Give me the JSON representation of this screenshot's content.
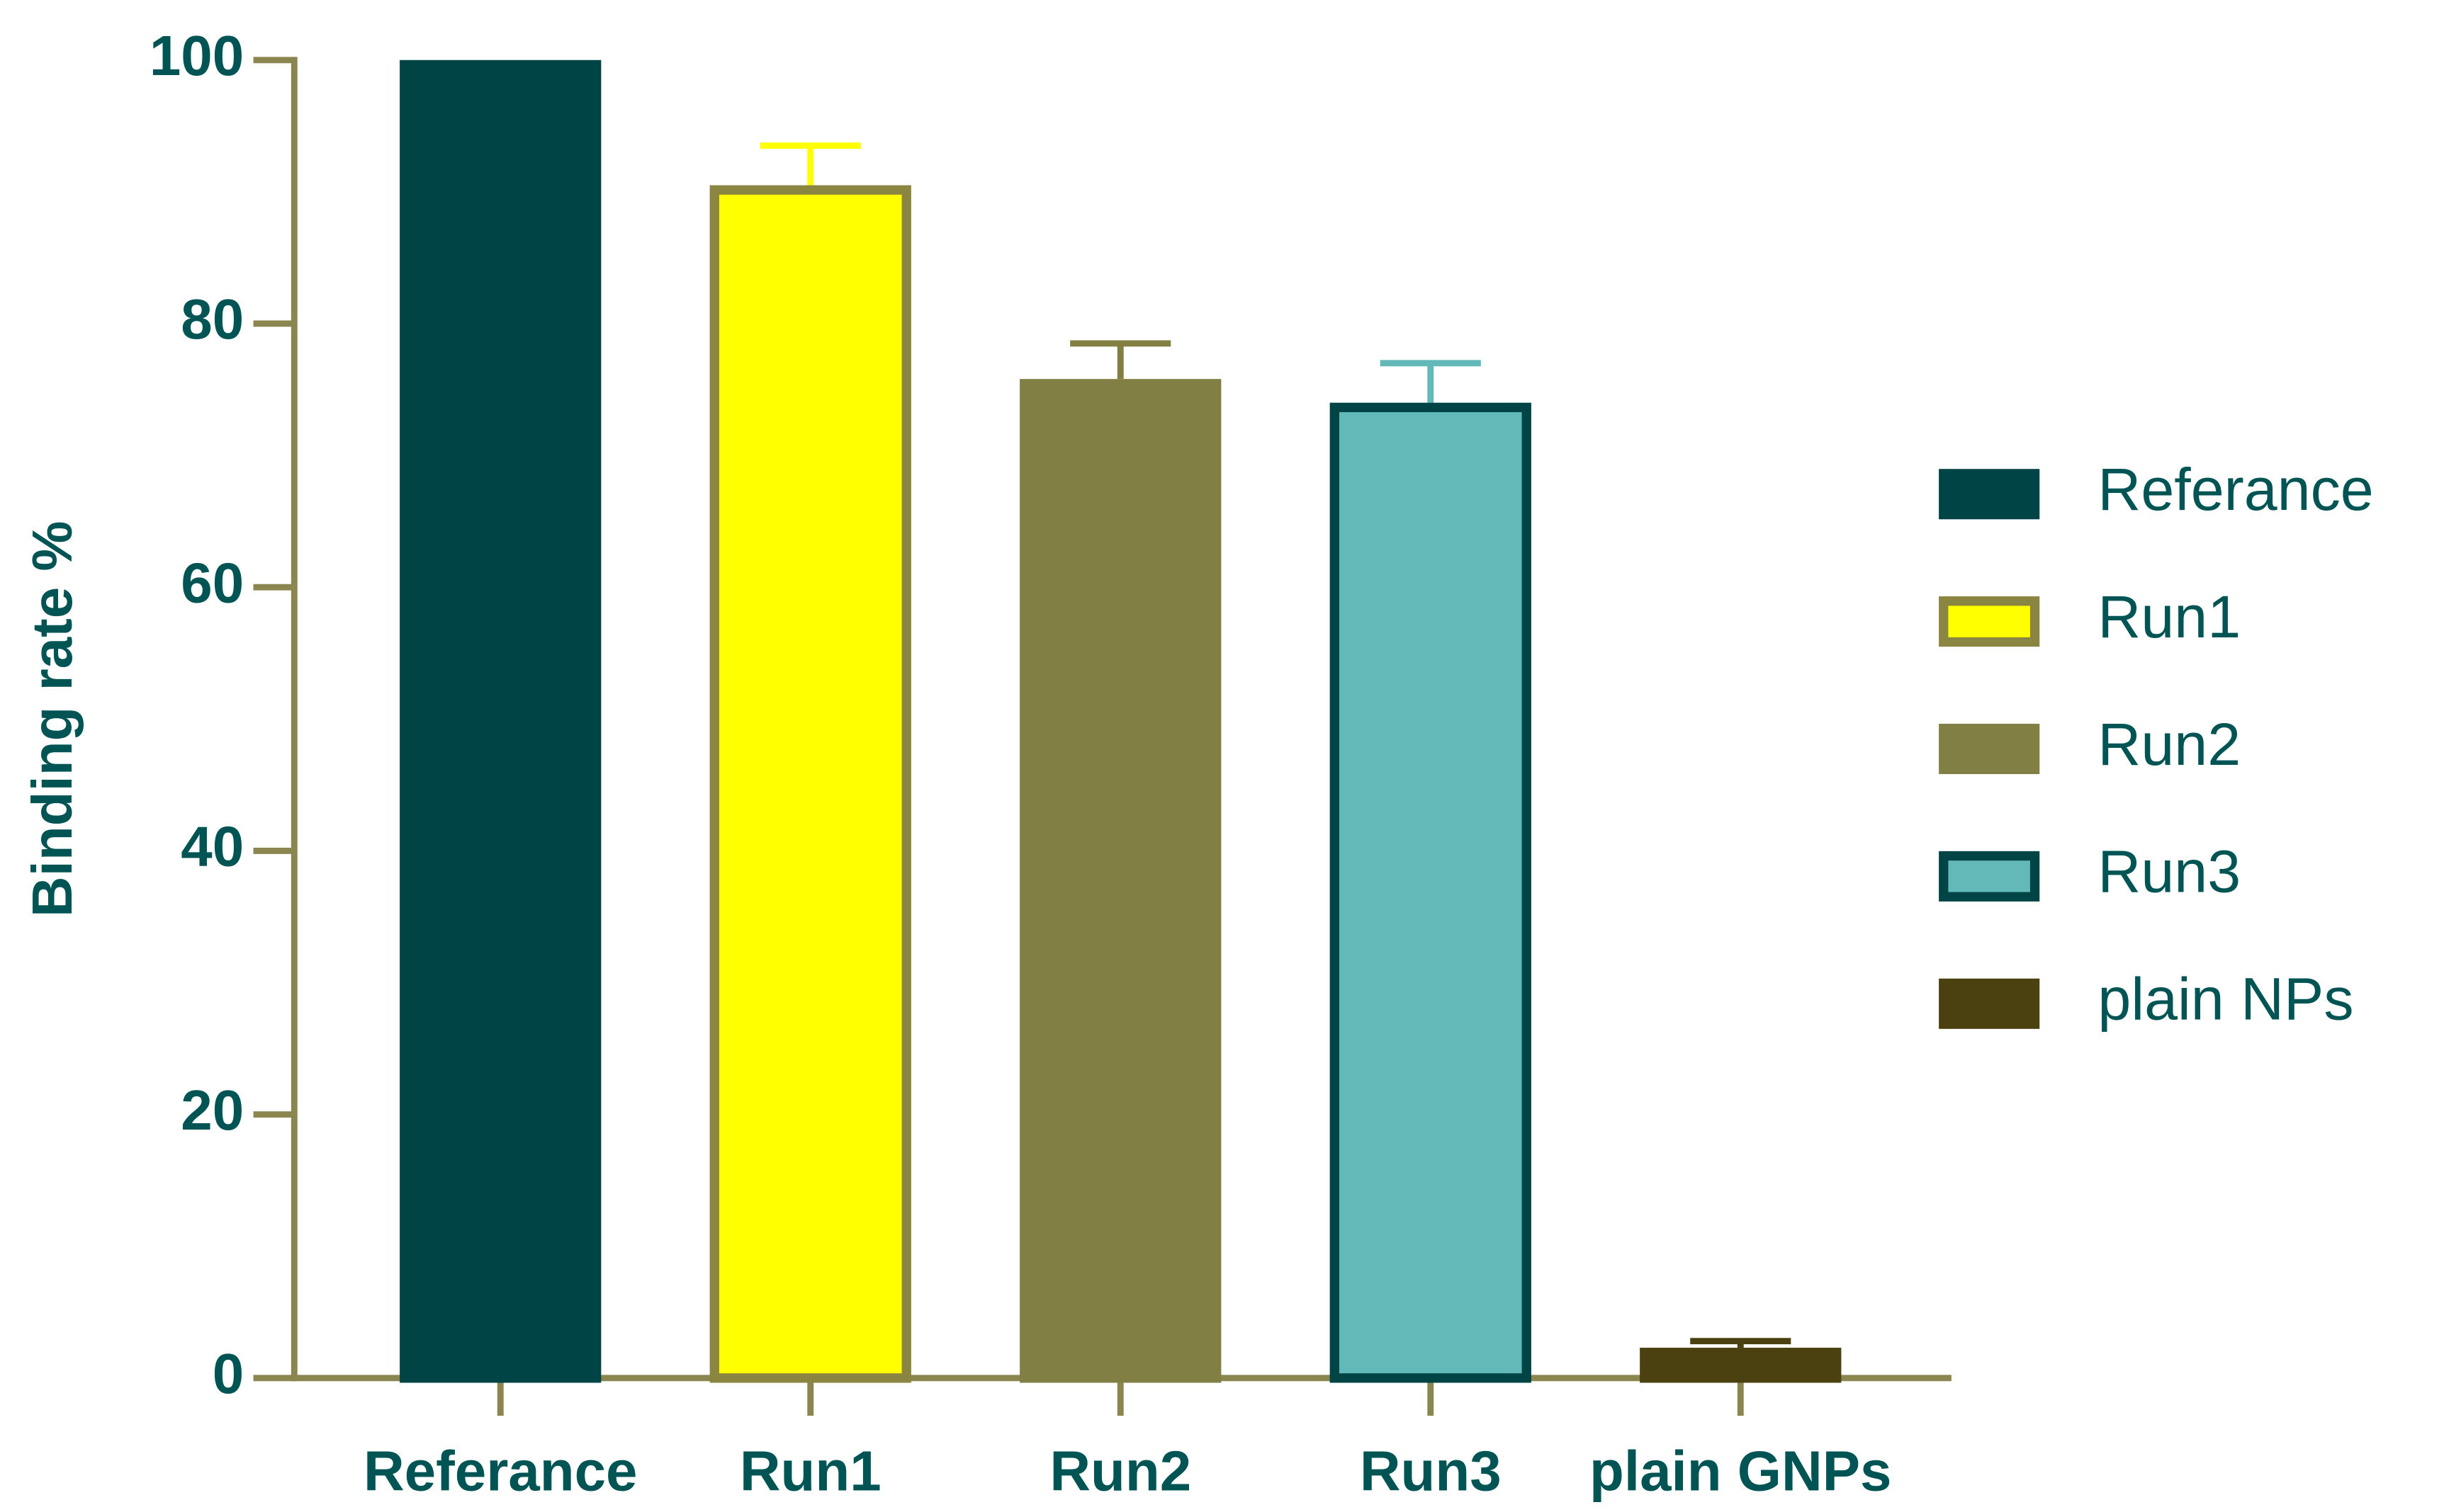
{
  "chart_data": {
    "type": "bar",
    "y_label": "Binding rate %",
    "categories": [
      "Referance",
      "Run1",
      "Run2",
      "Run3",
      "plain GNPs"
    ],
    "values": [
      100,
      90.5,
      75.8,
      74,
      2.3
    ],
    "errors": [
      null,
      3,
      2.7,
      3,
      0.5
    ],
    "colors": [
      "#004445",
      "#ffff00",
      "#827f44",
      "#63b8b8",
      "#4a4010"
    ],
    "edgecolors": [
      "#004445",
      "#8a8540",
      "#827f44",
      "#004445",
      "#4a4010"
    ],
    "legend_labels": [
      "Referance",
      "Run1",
      "Run2",
      "Run3",
      "plain NPs"
    ],
    "ylim": [
      0,
      100
    ],
    "yticks": [
      0,
      20,
      40,
      60,
      80,
      100
    ],
    "grid": false
  }
}
